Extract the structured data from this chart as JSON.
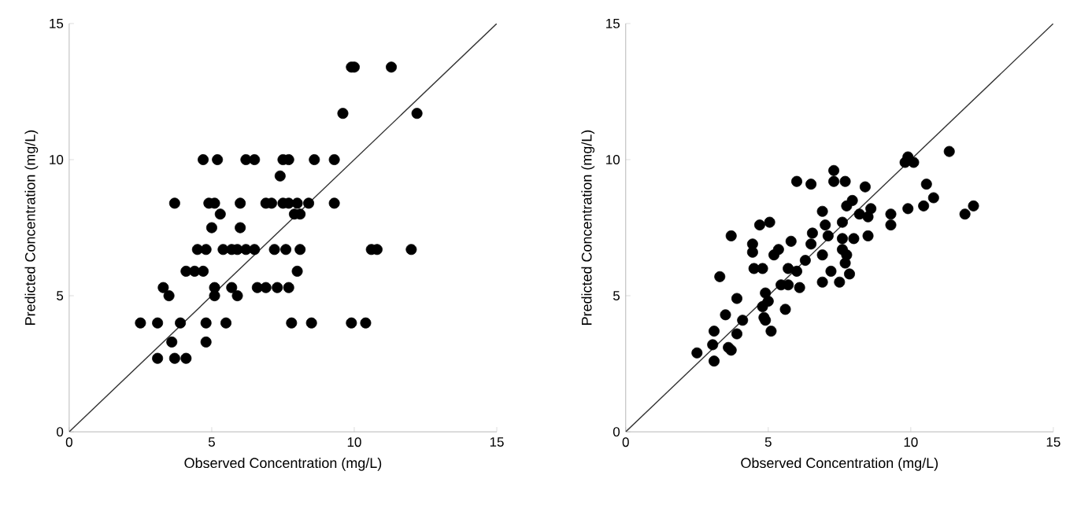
{
  "chart_data": [
    {
      "type": "scatter",
      "xlabel": "Observed Concentration (mg/L)",
      "ylabel": "Predicted Concentration (mg/L)",
      "xlim": [
        0,
        15
      ],
      "ylim": [
        0,
        15
      ],
      "xticks": [
        0,
        5,
        10,
        15
      ],
      "yticks": [
        0,
        5,
        10,
        15
      ],
      "marker": "circle",
      "series": [
        {
          "color": "#000000",
          "x": [
            9.9,
            10.0,
            11.3,
            9.6,
            12.2,
            4.7,
            5.2,
            6.2,
            6.5,
            7.5,
            7.7,
            8.6,
            9.3,
            7.4,
            3.7,
            4.9,
            5.1,
            6.0,
            6.9,
            7.1,
            7.5,
            7.7,
            8.0,
            8.4,
            9.3,
            5.3,
            7.9,
            8.1,
            5.0,
            6.0,
            4.5,
            4.8,
            5.4,
            5.7,
            5.9,
            6.2,
            6.5,
            7.2,
            7.6,
            8.1,
            10.6,
            10.8,
            12.0,
            4.1,
            4.4,
            4.7,
            8.0,
            3.3,
            5.1,
            5.7,
            6.6,
            6.9,
            7.3,
            7.7,
            3.5,
            5.1,
            5.9,
            2.5,
            3.1,
            3.9,
            4.8,
            5.5,
            7.8,
            8.5,
            9.9,
            10.4,
            3.6,
            4.8,
            3.1,
            3.7,
            4.1
          ],
          "values": [
            13.4,
            13.4,
            13.4,
            11.7,
            11.7,
            10.0,
            10.0,
            10.0,
            10.0,
            10.0,
            10.0,
            10.0,
            10.0,
            9.4,
            8.4,
            8.4,
            8.4,
            8.4,
            8.4,
            8.4,
            8.4,
            8.4,
            8.4,
            8.4,
            8.4,
            8.0,
            8.0,
            8.0,
            7.5,
            7.5,
            6.7,
            6.7,
            6.7,
            6.7,
            6.7,
            6.7,
            6.7,
            6.7,
            6.7,
            6.7,
            6.7,
            6.7,
            6.7,
            5.9,
            5.9,
            5.9,
            5.9,
            5.3,
            5.3,
            5.3,
            5.3,
            5.3,
            5.3,
            5.3,
            5.0,
            5.0,
            5.0,
            4.0,
            4.0,
            4.0,
            4.0,
            4.0,
            4.0,
            4.0,
            4.0,
            4.0,
            3.3,
            3.3,
            2.7,
            2.7,
            2.7
          ]
        },
        {
          "type": "line",
          "marker": "none",
          "color": "#333333",
          "x": [
            0,
            15
          ],
          "values": [
            0,
            15
          ]
        }
      ]
    },
    {
      "type": "scatter",
      "xlabel": "Observed Concentration (mg/L)",
      "ylabel": "Predicted Concentration (mg/L)",
      "xlim": [
        0,
        15
      ],
      "ylim": [
        0,
        15
      ],
      "xticks": [
        0,
        5,
        10,
        15
      ],
      "yticks": [
        0,
        5,
        10,
        15
      ],
      "marker": "circle",
      "series": [
        {
          "color": "#000000",
          "x": [
            2.5,
            3.1,
            3.05,
            3.1,
            3.6,
            3.7,
            3.9,
            3.5,
            4.1,
            3.9,
            3.3,
            3.7,
            4.45,
            4.45,
            4.5,
            4.7,
            5.05,
            4.8,
            5.2,
            5.36,
            5.8,
            4.9,
            4.8,
            4.9,
            5.1,
            4.85,
            5.0,
            5.6,
            5.45,
            5.7,
            5.7,
            6.1,
            6.0,
            6.3,
            6.5,
            6.55,
            6.0,
            6.5,
            6.9,
            6.9,
            6.9,
            7.0,
            7.1,
            7.3,
            7.3,
            7.7,
            7.2,
            7.5,
            7.6,
            7.6,
            7.6,
            7.75,
            7.95,
            7.85,
            8.0,
            7.75,
            7.7,
            8.2,
            8.4,
            8.6,
            8.5,
            8.5,
            9.3,
            9.3,
            9.8,
            9.9,
            10.1,
            9.9,
            10.45,
            10.55,
            10.8,
            11.35,
            11.9,
            12.2
          ],
          "values": [
            2.9,
            2.6,
            3.2,
            3.7,
            3.1,
            3.0,
            3.6,
            4.3,
            4.1,
            4.9,
            5.7,
            7.2,
            6.9,
            6.6,
            6.0,
            7.6,
            7.7,
            6.0,
            6.5,
            6.7,
            7.0,
            5.1,
            4.6,
            4.1,
            3.7,
            4.2,
            4.8,
            4.5,
            5.4,
            6.0,
            5.4,
            5.3,
            5.9,
            6.3,
            6.9,
            7.3,
            9.2,
            9.1,
            6.5,
            8.1,
            5.5,
            7.6,
            7.2,
            9.6,
            9.2,
            9.2,
            5.9,
            5.5,
            6.7,
            7.1,
            7.7,
            8.3,
            8.5,
            5.8,
            7.1,
            6.5,
            6.2,
            8.0,
            9.0,
            8.2,
            7.9,
            7.2,
            8.0,
            7.6,
            9.9,
            10.1,
            9.9,
            8.2,
            8.3,
            9.1,
            8.6,
            10.3,
            8.0,
            8.3
          ]
        },
        {
          "type": "line",
          "marker": "none",
          "color": "#333333",
          "x": [
            0,
            15
          ],
          "values": [
            0,
            15
          ]
        }
      ]
    }
  ]
}
